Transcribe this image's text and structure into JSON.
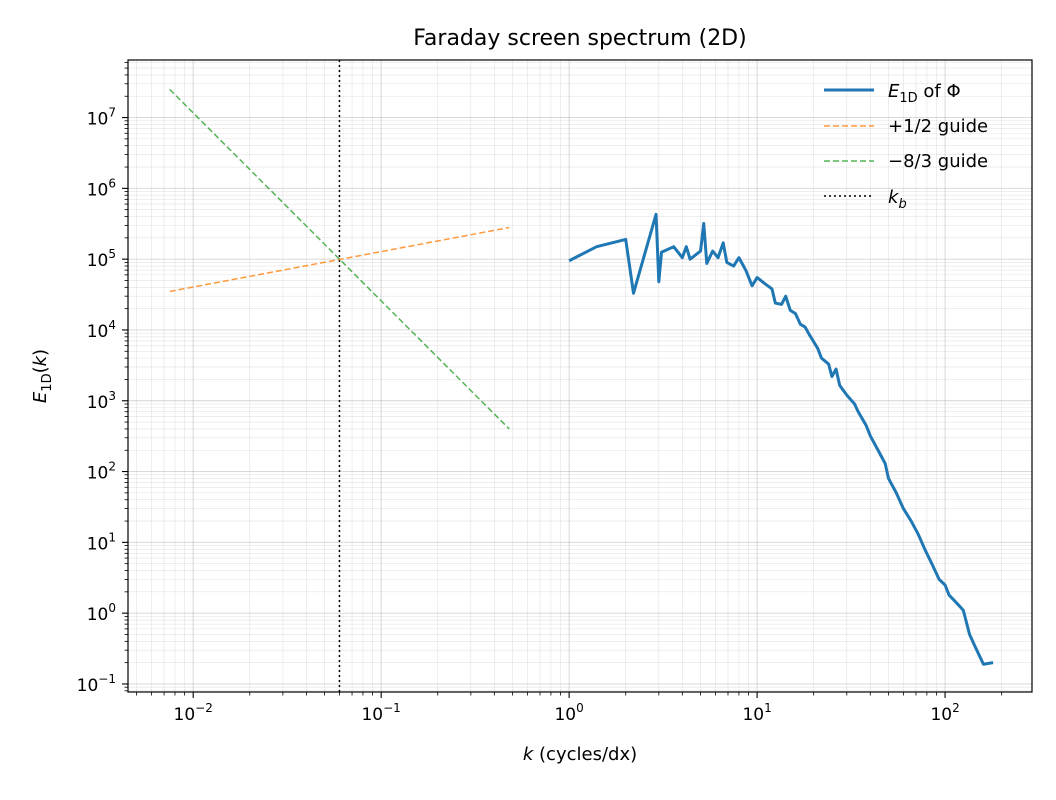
{
  "chart_data": {
    "type": "line",
    "title": "Faraday screen spectrum (2D)",
    "xlabel": "k (cycles/dx)",
    "ylabel": "E1D(k)",
    "xscale": "log",
    "yscale": "log",
    "xlim": [
      0.0045,
      290
    ],
    "ylim": [
      0.077,
      65000000
    ],
    "grid": true,
    "legend_position": "top-right",
    "x_ticks": [
      {
        "value": 0.01,
        "mant": "10",
        "exp": "−2"
      },
      {
        "value": 0.1,
        "mant": "10",
        "exp": "−1"
      },
      {
        "value": 1,
        "mant": "10",
        "exp": "0"
      },
      {
        "value": 10,
        "mant": "10",
        "exp": "1"
      },
      {
        "value": 100,
        "mant": "10",
        "exp": "2"
      }
    ],
    "y_ticks": [
      {
        "value": 0.1,
        "mant": "10",
        "exp": "−1"
      },
      {
        "value": 1,
        "mant": "10",
        "exp": "0"
      },
      {
        "value": 10,
        "mant": "10",
        "exp": "1"
      },
      {
        "value": 100,
        "mant": "10",
        "exp": "2"
      },
      {
        "value": 1000,
        "mant": "10",
        "exp": "3"
      },
      {
        "value": 10000,
        "mant": "10",
        "exp": "4"
      },
      {
        "value": 100000,
        "mant": "10",
        "exp": "5"
      },
      {
        "value": 1000000,
        "mant": "10",
        "exp": "6"
      },
      {
        "value": 10000000,
        "mant": "10",
        "exp": "7"
      }
    ],
    "series": [
      {
        "name": "E1D of Φ",
        "color": "#1f77b4",
        "style": "solid",
        "points": [
          [
            1.0,
            95000
          ],
          [
            1.4,
            150000
          ],
          [
            2.0,
            190000
          ],
          [
            2.2,
            33000
          ],
          [
            2.9,
            430000
          ],
          [
            3.0,
            48000
          ],
          [
            3.1,
            125000
          ],
          [
            3.6,
            150000
          ],
          [
            4.0,
            105000
          ],
          [
            4.2,
            150000
          ],
          [
            4.4,
            100000
          ],
          [
            5.0,
            130000
          ],
          [
            5.2,
            320000
          ],
          [
            5.4,
            87000
          ],
          [
            5.8,
            130000
          ],
          [
            6.2,
            105000
          ],
          [
            6.6,
            170000
          ],
          [
            6.9,
            90000
          ],
          [
            7.5,
            80000
          ],
          [
            8.0,
            105000
          ],
          [
            8.7,
            70000
          ],
          [
            9.4,
            42000
          ],
          [
            10.0,
            55000
          ],
          [
            11.0,
            45000
          ],
          [
            12.0,
            38000
          ],
          [
            12.5,
            24000
          ],
          [
            13.5,
            23000
          ],
          [
            14.2,
            30000
          ],
          [
            15.0,
            19000
          ],
          [
            16.0,
            17000
          ],
          [
            17.0,
            12000
          ],
          [
            18.0,
            11000
          ],
          [
            19.0,
            8500
          ],
          [
            21.0,
            5500
          ],
          [
            22.0,
            4000
          ],
          [
            24.0,
            3300
          ],
          [
            25.0,
            2200
          ],
          [
            26.3,
            2800
          ],
          [
            27.5,
            1650
          ],
          [
            30.0,
            1200
          ],
          [
            33.0,
            900
          ],
          [
            34.5,
            700
          ],
          [
            38.0,
            450
          ],
          [
            40.0,
            320
          ],
          [
            44.0,
            200
          ],
          [
            48.0,
            130
          ],
          [
            50.0,
            80
          ],
          [
            55.0,
            50
          ],
          [
            60.0,
            30
          ],
          [
            66.0,
            20
          ],
          [
            72.0,
            13
          ],
          [
            78.0,
            8
          ],
          [
            85.0,
            5
          ],
          [
            93.0,
            3
          ],
          [
            100.0,
            2.5
          ],
          [
            105.0,
            1.8
          ],
          [
            115.0,
            1.4
          ],
          [
            125.0,
            1.1
          ],
          [
            135.0,
            0.5
          ],
          [
            145.0,
            0.33
          ],
          [
            160.0,
            0.19
          ],
          [
            180.0,
            0.2
          ]
        ]
      },
      {
        "name": "+1/2 guide",
        "color": "#ff7f0e",
        "style": "dashed",
        "points": [
          [
            0.0075,
            35000
          ],
          [
            0.48,
            280000
          ]
        ]
      },
      {
        "name": "−8/3 guide",
        "color": "#2ca02c",
        "style": "dashed",
        "points": [
          [
            0.0075,
            25000000
          ],
          [
            0.48,
            400
          ]
        ]
      }
    ],
    "vlines": [
      {
        "name": "k_b",
        "x": 0.06,
        "color": "#000000",
        "style": "dotted"
      }
    ]
  }
}
